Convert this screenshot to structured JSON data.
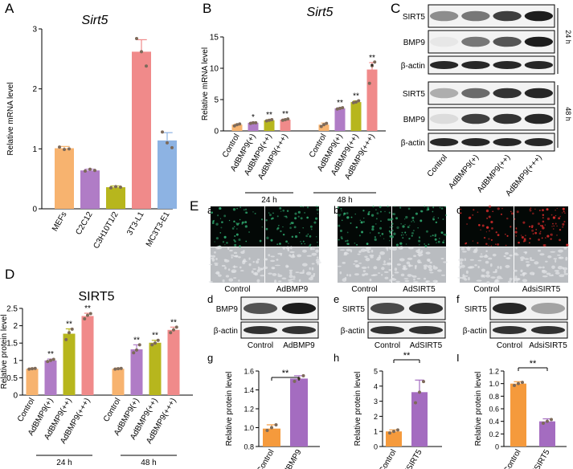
{
  "colors": {
    "orange": "#f7b36f",
    "purple": "#b07cc6",
    "olive": "#b7b61d",
    "pink": "#f08a8a",
    "blue": "#8db3e3",
    "dark_orange": "#f59a3c",
    "dark_purple": "#a46cc0",
    "green_fluor": "#2ea36b",
    "red_fluor": "#d42a2a",
    "point": "#7d6a5a"
  },
  "chart_data": [
    {
      "panel": "A",
      "type": "bar",
      "title": "Sirt5",
      "ylabel": "Relative mRNA level",
      "ylim": [
        0,
        3
      ],
      "yticks": [
        0,
        1,
        2,
        3
      ],
      "categories": [
        "MEFs",
        "C2C12",
        "C3H10T1/2",
        "3T3-L1",
        "MC3T3-E1"
      ],
      "values": [
        1.01,
        0.64,
        0.36,
        2.62,
        1.14
      ],
      "errors": [
        0.03,
        0.02,
        0.02,
        0.2,
        0.13
      ],
      "points": [
        [
          1.03,
          0.99,
          1.0
        ],
        [
          0.63,
          0.66,
          0.64
        ],
        [
          0.35,
          0.37,
          0.36
        ],
        [
          2.84,
          2.62,
          2.38
        ],
        [
          1.28,
          1.1,
          1.02
        ]
      ],
      "bar_colors": [
        "orange",
        "purple",
        "olive",
        "pink",
        "blue"
      ]
    },
    {
      "panel": "B",
      "type": "bar",
      "title": "Sirt5",
      "ylabel": "Relative mRNA level",
      "ylim": [
        0,
        15
      ],
      "yticks": [
        0,
        5,
        10,
        15
      ],
      "categories": [
        "Control",
        "AdBMP9(+)",
        "AdBMP9(++)",
        "AdBMP9(+++)",
        "Control",
        "AdBMP9(+)",
        "AdBMP9(++)",
        "AdBMP9(+++)"
      ],
      "values": [
        1.0,
        1.3,
        1.7,
        1.8,
        1.0,
        3.6,
        4.6,
        9.8
      ],
      "errors": [
        0.1,
        0.1,
        0.1,
        0.1,
        0.25,
        0.1,
        0.2,
        1.1
      ],
      "points": [
        [
          0.8,
          1.0,
          1.1
        ],
        [
          1.2,
          1.3,
          1.3
        ],
        [
          1.6,
          1.7,
          1.8
        ],
        [
          1.7,
          1.8,
          1.9
        ],
        [
          0.7,
          1.0,
          1.2
        ],
        [
          3.5,
          3.6,
          3.7
        ],
        [
          4.5,
          4.6,
          4.8
        ],
        [
          7.6,
          10.4,
          11.0
        ]
      ],
      "significance": [
        "",
        "*",
        "**",
        "**",
        "",
        "**",
        "**",
        "**"
      ],
      "extra_marks": [
        "",
        "",
        "",
        "",
        "",
        "",
        "",
        "*"
      ],
      "groups": [
        "24 h",
        "48 h"
      ],
      "bar_colors": [
        "orange",
        "purple",
        "olive",
        "pink",
        "orange",
        "purple",
        "olive",
        "pink"
      ]
    },
    {
      "panel": "D",
      "type": "bar",
      "title": "SIRT5",
      "ylabel": "Relative protein level",
      "ylim": [
        0,
        2.5
      ],
      "yticks": [
        0,
        0.5,
        1.0,
        1.5,
        2.0,
        2.5
      ],
      "categories": [
        "Control",
        "AdBMP9(+)",
        "AdBMP9(++)",
        "AdBMP9(+++)",
        "Control",
        "AdBMP9(+)",
        "AdBMP9(++)",
        "AdBMP9(+++)"
      ],
      "values": [
        0.76,
        1.0,
        1.77,
        2.28,
        0.76,
        1.32,
        1.51,
        1.88
      ],
      "errors": [
        0.02,
        0.04,
        0.14,
        0.08,
        0.02,
        0.13,
        0.07,
        0.08
      ],
      "points": [
        [
          0.75,
          0.76,
          0.77
        ],
        [
          0.97,
          1.0,
          1.03
        ],
        [
          1.6,
          1.8,
          1.9
        ],
        [
          2.2,
          2.3,
          2.35
        ],
        [
          0.75,
          0.76,
          0.77
        ],
        [
          1.22,
          1.3,
          1.45
        ],
        [
          1.45,
          1.5,
          1.58
        ],
        [
          1.8,
          1.88,
          1.96
        ]
      ],
      "significance": [
        "",
        "**",
        "**",
        "**",
        "",
        "**",
        "**",
        "**"
      ],
      "groups": [
        "24 h",
        "48 h"
      ],
      "bar_colors": [
        "orange",
        "purple",
        "olive",
        "pink",
        "orange",
        "purple",
        "olive",
        "pink"
      ]
    },
    {
      "panel": "g",
      "type": "bar",
      "ylabel": "Relative protein level",
      "ylim": [
        0.8,
        1.6
      ],
      "yticks": [
        0.8,
        1.0,
        1.2,
        1.4,
        1.6
      ],
      "ytick_labels": [
        "0.8",
        "1.0",
        "1.2",
        "1.4",
        "1.6"
      ],
      "categories": [
        "Control",
        "AdBMP9"
      ],
      "values": [
        0.99,
        1.52
      ],
      "errors": [
        0.04,
        0.03
      ],
      "points": [
        [
          0.97,
          1.0,
          1.03
        ],
        [
          1.49,
          1.52,
          1.55
        ]
      ],
      "significance": "**",
      "bar_colors": [
        "dark_orange",
        "dark_purple"
      ]
    },
    {
      "panel": "h",
      "type": "bar",
      "ylabel": "Relative protein level",
      "ylim": [
        0,
        5
      ],
      "yticks": [
        0,
        1,
        2,
        3,
        4,
        5
      ],
      "ytick_labels": [
        "0",
        "1",
        "2",
        "3",
        "4",
        "5"
      ],
      "categories": [
        "Control",
        "AdSIRT5"
      ],
      "values": [
        1.0,
        3.6
      ],
      "errors": [
        0.1,
        0.8
      ],
      "points": [
        [
          0.9,
          1.0,
          1.1
        ],
        [
          2.9,
          3.6,
          4.3
        ]
      ],
      "significance": "**",
      "bar_colors": [
        "dark_orange",
        "dark_purple"
      ]
    },
    {
      "panel": "I",
      "type": "bar",
      "ylabel": "Relative protein level",
      "ylim": [
        0,
        1.2
      ],
      "yticks": [
        0,
        0.2,
        0.4,
        0.6,
        0.8,
        1.0,
        1.2
      ],
      "ytick_labels": [
        "0",
        "0.2",
        "0.4",
        "0.6",
        "0.8",
        "1.0",
        "1.2"
      ],
      "categories": [
        "Control",
        "AdsiSIRT5"
      ],
      "values": [
        1.0,
        0.4
      ],
      "errors": [
        0.03,
        0.04
      ],
      "points": [
        [
          0.97,
          1.0,
          1.02
        ],
        [
          0.37,
          0.4,
          0.43
        ]
      ],
      "significance": "**",
      "bar_colors": [
        "dark_orange",
        "dark_purple"
      ]
    }
  ],
  "panel_labels": {
    "A": "A",
    "B": "B",
    "C": "C",
    "D": "D",
    "E": "E",
    "a": "a",
    "b": "b",
    "c": "c",
    "d": "d",
    "e": "e",
    "f": "f",
    "g": "g",
    "h": "h",
    "i": "I"
  },
  "western_blot_C": {
    "rows_24h": [
      "SIRT5",
      "BMP9",
      "β-actin"
    ],
    "rows_48h": [
      "SIRT5",
      "BMP9",
      "β-actin"
    ],
    "time_24": "24 h",
    "time_48": "48 h",
    "lanes": [
      "Control",
      "AdBMP9(+)",
      "AdBMP9(++)",
      "AdBMP9(+++)"
    ],
    "intensity_24h": [
      [
        0.45,
        0.55,
        0.8,
        0.95
      ],
      [
        0.05,
        0.55,
        0.7,
        0.95
      ],
      [
        0.9,
        0.9,
        0.9,
        0.9
      ]
    ],
    "intensity_48h": [
      [
        0.3,
        0.6,
        0.85,
        0.9
      ],
      [
        0.1,
        0.8,
        0.85,
        0.9
      ],
      [
        0.9,
        0.9,
        0.9,
        0.9
      ]
    ]
  },
  "panel_E": {
    "a": {
      "labels": [
        "Control",
        "AdBMP9"
      ],
      "fluor": "green_fluor",
      "blot_row": "BMP9",
      "blot_intensity": [
        0.7,
        0.95
      ]
    },
    "b": {
      "labels": [
        "Control",
        "AdSIRT5"
      ],
      "fluor": "green_fluor",
      "blot_row": "SIRT5",
      "blot_intensity": [
        0.75,
        0.85
      ]
    },
    "c": {
      "labels": [
        "Control",
        "AdsiSIRT5"
      ],
      "fluor": "red_fluor",
      "blot_row": "SIRT5",
      "blot_intensity": [
        0.9,
        0.35
      ]
    },
    "actin_label": "β-actin"
  }
}
